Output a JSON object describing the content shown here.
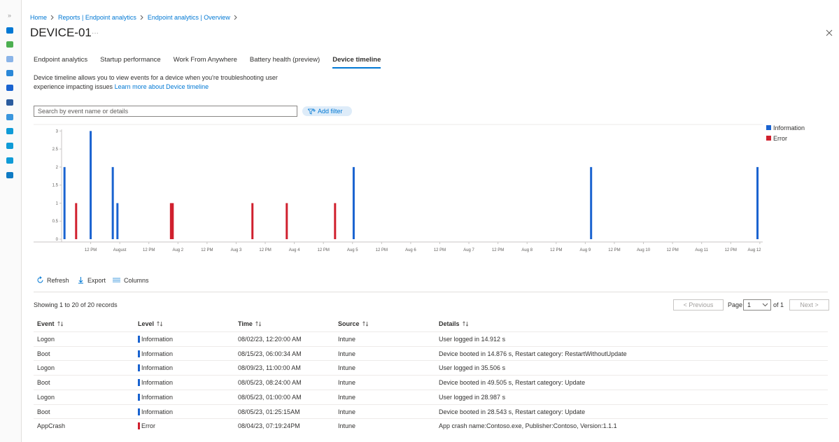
{
  "breadcrumb": [
    "Home",
    "Reports | Endpoint analytics",
    "Endpoint analytics | Overview"
  ],
  "title": "DEVICE-01",
  "tabs": [
    "Endpoint analytics",
    "Startup performance",
    "Work From Anywhere",
    "Battery health (preview)",
    "Device timeline"
  ],
  "selected_tab": 4,
  "description": {
    "text": "Device timeline allows you to view events for a device when you're troubleshooting user experience impacting issues",
    "link": "Learn more about Device timeline"
  },
  "search": {
    "placeholder": "Search by event name or details"
  },
  "add_filter": "Add filter",
  "chart_data": {
    "type": "bar",
    "xlim": [
      0,
      12.05
    ],
    "xticks": [
      {
        "value": 0.5,
        "label": "12 PM"
      },
      {
        "value": 1,
        "label": "August"
      },
      {
        "value": 1.5,
        "label": "12 PM"
      },
      {
        "value": 2,
        "label": "Aug 2"
      },
      {
        "value": 2.5,
        "label": "12 PM"
      },
      {
        "value": 3,
        "label": "Aug 3"
      },
      {
        "value": 3.5,
        "label": "12 PM"
      },
      {
        "value": 4,
        "label": "Aug 4"
      },
      {
        "value": 4.5,
        "label": "12 PM"
      },
      {
        "value": 5,
        "label": "Aug 5"
      },
      {
        "value": 5.5,
        "label": "12 PM"
      },
      {
        "value": 6,
        "label": "Aug 6"
      },
      {
        "value": 6.5,
        "label": "12 PM"
      },
      {
        "value": 7,
        "label": "Aug 7"
      },
      {
        "value": 7.5,
        "label": "12 PM"
      },
      {
        "value": 8,
        "label": "Aug 8"
      },
      {
        "value": 8.5,
        "label": "12 PM"
      },
      {
        "value": 9,
        "label": "Aug 9"
      },
      {
        "value": 9.5,
        "label": "12 PM"
      },
      {
        "value": 10,
        "label": "Aug 10"
      },
      {
        "value": 10.5,
        "label": "12 PM"
      },
      {
        "value": 11,
        "label": "Aug 11"
      },
      {
        "value": 11.5,
        "label": "12 PM"
      },
      {
        "value": 12,
        "label": "Aug 12"
      }
    ],
    "ylim": [
      0,
      3.2
    ],
    "yticks": [
      0,
      0.5,
      1,
      1.5,
      2,
      2.5,
      3
    ],
    "legend": "top-right",
    "series": [
      {
        "name": "Information",
        "color": "#1a63d0",
        "x": [
          0.05,
          0.5,
          0.88,
          0.96,
          5.02,
          9.1,
          11.96
        ],
        "values": [
          2,
          3,
          2,
          1,
          2,
          2,
          2
        ]
      },
      {
        "name": "Error",
        "color": "#d0202e",
        "x": [
          0.25,
          1.88,
          1.91,
          3.28,
          3.87,
          4.7
        ],
        "values": [
          1,
          1,
          1,
          1,
          1,
          1
        ]
      }
    ]
  },
  "toolbar": [
    "Refresh",
    "Export",
    "Columns"
  ],
  "records_summary": "Showing 1 to 20 of 20 records",
  "pagination": {
    "previous": "< Previous",
    "page_label": "Page",
    "page": "1",
    "of": "of 1",
    "next": "Next >"
  },
  "table": {
    "columns": [
      "Event",
      "Level",
      "Time",
      "Source",
      "Details"
    ],
    "rows": [
      [
        "Logon",
        "Information",
        "08/02/23, 12:20:00 AM",
        "Intune",
        "User logged in 14.912 s"
      ],
      [
        "Boot",
        "Information",
        "08/15/23, 06:00:34 AM",
        "Intune",
        "Device booted in 14.876 s, Restart category: RestartWithoutUpdate"
      ],
      [
        "Logon",
        "Information",
        "08/09/23, 11:00:00 AM",
        "Intune",
        "User logged in 35.506 s"
      ],
      [
        "Boot",
        "Information",
        "08/05/23, 08:24:00 AM",
        "Intune",
        "Device booted in 49.505 s, Restart category: Update"
      ],
      [
        "Logon",
        "Information",
        "08/05/23, 01:00:00 AM",
        "Intune",
        "User logged in 28.987 s"
      ],
      [
        "Boot",
        "Information",
        "08/05/23, 01:25:15AM",
        "Intune",
        "Device booted in 28.543 s, Restart category: Update"
      ],
      [
        "AppCrash",
        "Error",
        "08/04/23, 07:19:24PM",
        "Intune",
        "App crash name:Contoso.exe, Publisher:Contoso, Version:1.1.1"
      ]
    ]
  }
}
